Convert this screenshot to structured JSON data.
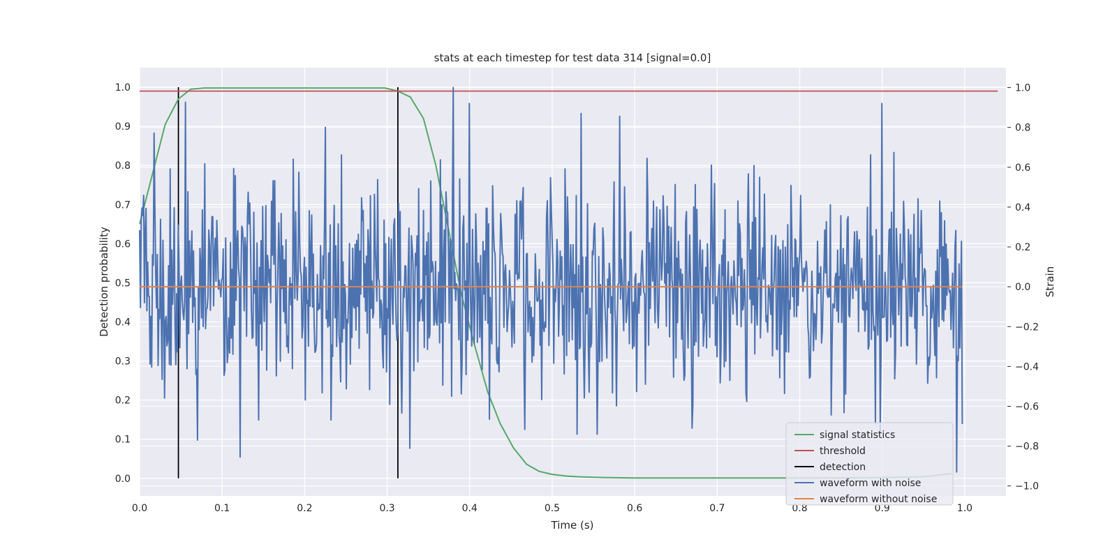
{
  "chart_data": {
    "type": "line",
    "title": "stats at each timestep for test data 314 [signal=0.0]",
    "xlabel": "Time (s)",
    "ylabel_left": "Detection probability",
    "ylabel_right": "Strain",
    "xlim": [
      0.0,
      1.05
    ],
    "ylim_left": [
      -0.045,
      1.05
    ],
    "ylim_right": [
      -1.05,
      1.1
    ],
    "x_ticks": [
      "0.0",
      "0.1",
      "0.2",
      "0.3",
      "0.4",
      "0.5",
      "0.6",
      "0.7",
      "0.8",
      "0.9",
      "1.0"
    ],
    "y_left_ticks": [
      "0.0",
      "0.1",
      "0.2",
      "0.3",
      "0.4",
      "0.5",
      "0.6",
      "0.7",
      "0.8",
      "0.9",
      "1.0"
    ],
    "y_right_ticks": [
      "−1.0",
      "−0.8",
      "−0.6",
      "−0.4",
      "−0.2",
      "0.0",
      "0.2",
      "0.4",
      "0.6",
      "0.8",
      "1.0"
    ],
    "grid": true,
    "legend_position": "bottom-right",
    "colors": {
      "signal_statistics": "#55a868",
      "threshold": "#c44e52",
      "detection": "#000000",
      "waveform_with_noise": "#4c72b0",
      "waveform_without_noise": "#dd8452",
      "background": "#eaeaf2",
      "grid": "#ffffff"
    },
    "series": [
      {
        "name": "signal statistics",
        "axis": "left",
        "x": [
          0.0,
          0.031,
          0.047,
          0.062,
          0.078,
          0.1,
          0.15,
          0.2,
          0.25,
          0.297,
          0.313,
          0.328,
          0.344,
          0.359,
          0.375,
          0.39,
          0.406,
          0.422,
          0.437,
          0.453,
          0.469,
          0.484,
          0.5,
          0.516,
          0.531,
          0.547,
          0.563,
          0.578,
          0.6,
          0.65,
          0.7,
          0.75,
          0.8,
          0.85,
          0.9,
          0.95,
          0.984
        ],
        "y": [
          0.65,
          0.905,
          0.97,
          0.995,
          0.998,
          0.998,
          0.998,
          0.998,
          0.998,
          0.998,
          0.99,
          0.975,
          0.92,
          0.8,
          0.63,
          0.47,
          0.34,
          0.22,
          0.14,
          0.078,
          0.036,
          0.018,
          0.01,
          0.006,
          0.004,
          0.003,
          0.002,
          0.0015,
          0.001,
          0.001,
          0.001,
          0.001,
          0.001,
          0.001,
          0.002,
          0.004,
          0.012
        ]
      },
      {
        "name": "threshold",
        "axis": "left",
        "x": [
          0.0,
          1.04
        ],
        "y": [
          0.99,
          0.99
        ]
      },
      {
        "name": "detection",
        "axis": "left",
        "x": [
          0.047,
          0.313
        ],
        "y_range": [
          0.0,
          1.0
        ]
      },
      {
        "name": "waveform with noise",
        "axis": "right",
        "x_range": [
          0.0,
          0.997
        ],
        "n_points": 1024,
        "seed": 314,
        "sigma": 0.27,
        "clip": [
          -0.95,
          1.0
        ],
        "spikes": [
          {
            "x": 0.38,
            "y": 1.0
          },
          {
            "x": 0.4,
            "y": 0.92
          },
          {
            "x": 0.225,
            "y": 0.8
          },
          {
            "x": 0.9,
            "y": 0.92
          },
          {
            "x": 0.535,
            "y": 0.87
          },
          {
            "x": 0.99,
            "y": -0.93
          },
          {
            "x": 0.07,
            "y": -0.77
          },
          {
            "x": 0.53,
            "y": -0.74
          },
          {
            "x": 0.555,
            "y": -0.74
          },
          {
            "x": 0.67,
            "y": -0.71
          }
        ]
      },
      {
        "name": "waveform without noise",
        "axis": "right",
        "x": [
          0.0,
          0.997
        ],
        "y": [
          0.0,
          0.0
        ]
      }
    ]
  }
}
